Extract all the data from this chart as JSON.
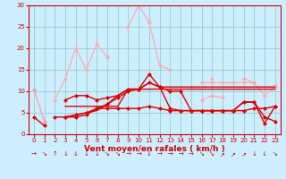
{
  "title": "",
  "xlabel": "Vent moyen/en rafales ( km/h )",
  "ylabel": "",
  "xlim": [
    -0.5,
    23.5
  ],
  "ylim": [
    0,
    30
  ],
  "xticks": [
    0,
    1,
    2,
    3,
    4,
    5,
    6,
    7,
    8,
    9,
    10,
    11,
    12,
    13,
    14,
    15,
    16,
    17,
    18,
    19,
    20,
    21,
    22,
    23
  ],
  "yticks": [
    0,
    5,
    10,
    15,
    20,
    25,
    30
  ],
  "background_color": "#cceeff",
  "grid_color": "#99cccc",
  "series": [
    {
      "y": [
        10.5,
        3,
        null,
        null,
        null,
        null,
        null,
        null,
        null,
        null,
        null,
        null,
        null,
        null,
        null,
        null,
        null,
        null,
        null,
        null,
        null,
        null,
        null,
        null
      ],
      "color": "#ff9999",
      "lw": 0.9,
      "marker": "D",
      "ms": 2.0
    },
    {
      "y": [
        null,
        null,
        8,
        13,
        20,
        15,
        21,
        18,
        null,
        25,
        30,
        26,
        16,
        15,
        null,
        11,
        null,
        13,
        null,
        null,
        13,
        12,
        null,
        11.5
      ],
      "color": "#ffaaaa",
      "lw": 0.9,
      "marker": "D",
      "ms": 2.0
    },
    {
      "y": [
        null,
        null,
        null,
        null,
        null,
        null,
        null,
        null,
        null,
        null,
        null,
        null,
        null,
        null,
        null,
        null,
        12,
        12,
        12,
        12,
        12,
        12,
        9,
        11
      ],
      "color": "#ffaaaa",
      "lw": 0.9,
      "marker": "D",
      "ms": 2.0
    },
    {
      "y": [
        null,
        null,
        null,
        null,
        null,
        null,
        null,
        null,
        null,
        null,
        null,
        null,
        null,
        null,
        null,
        null,
        8,
        9,
        8.5,
        null,
        null,
        null,
        null,
        null
      ],
      "color": "#ffaaaa",
      "lw": 0.9,
      "marker": "D",
      "ms": 2.0
    },
    {
      "y": [
        null,
        null,
        null,
        8,
        9,
        9,
        8,
        8.5,
        9,
        10.5,
        10.5,
        12,
        11,
        6,
        5.5,
        5.5,
        5.5,
        5.5,
        5.5,
        5.5,
        5.5,
        6,
        6,
        6.5
      ],
      "color": "#dd0000",
      "lw": 1.0,
      "marker": "D",
      "ms": 2.0
    },
    {
      "y": [
        4,
        2,
        null,
        4,
        4,
        4.5,
        6,
        6,
        6,
        6,
        6,
        6.5,
        6,
        5.5,
        5.5,
        5.5,
        5.5,
        5.5,
        5.5,
        5.5,
        7.5,
        7.5,
        4,
        3
      ],
      "color": "#dd0000",
      "lw": 1.0,
      "marker": "D",
      "ms": 2.0
    },
    {
      "y": [
        null,
        null,
        4,
        4,
        4.5,
        5,
        6,
        7,
        8.5,
        10,
        10.5,
        14,
        11,
        10,
        10,
        5.5,
        5.5,
        5.5,
        5.5,
        5.5,
        7.5,
        7.5,
        2.5,
        6.5
      ],
      "color": "#dd0000",
      "lw": 1.0,
      "marker": "D",
      "ms": 2.0
    },
    {
      "y": [
        null,
        null,
        null,
        6.5,
        6.5,
        6.5,
        6.5,
        6.5,
        6.5,
        10.5,
        10.5,
        10.5,
        10.5,
        10.5,
        10.5,
        10.5,
        10.5,
        10.5,
        10.5,
        10.5,
        10.5,
        10.5,
        10.5,
        10.5
      ],
      "color": "#dd0000",
      "lw": 1.0,
      "marker": null,
      "ms": 0
    },
    {
      "y": [
        null,
        null,
        null,
        4,
        4.5,
        5,
        5.5,
        7,
        9,
        10.5,
        10.5,
        12,
        11,
        11,
        11,
        11,
        11,
        11,
        11,
        11,
        11,
        11,
        11,
        11
      ],
      "color": "#dd0000",
      "lw": 1.0,
      "marker": null,
      "ms": 0
    }
  ],
  "arrow_dirs": [
    "→",
    "↘",
    "↑",
    "↓",
    "↓",
    "↓",
    "↓",
    "↘",
    "↘",
    "→",
    "→",
    "↓",
    "→",
    "→",
    "→",
    "→",
    "↘",
    "↘",
    "↗",
    "↗",
    "↗",
    "↓",
    "↓",
    "↘"
  ]
}
